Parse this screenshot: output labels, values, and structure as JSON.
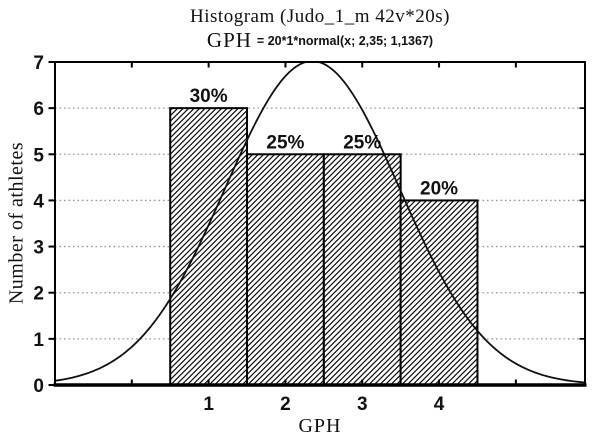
{
  "chart_data": {
    "type": "bar",
    "title": "Histogram (Judo_1_m 42v*20s)",
    "subtitle_variable": "GPH",
    "subtitle_formula": "= 20*1*normal(x; 2,35; 1,1367)",
    "xlabel": "GPH",
    "ylabel": "Number of athletes",
    "categories": [
      1,
      2,
      3,
      4
    ],
    "values": [
      6,
      5,
      5,
      4
    ],
    "bar_percent_labels": [
      "30%",
      "25%",
      "25%",
      "20%"
    ],
    "bar_width": 1,
    "x_tick_labels": [
      "1",
      "2",
      "3",
      "4"
    ],
    "x_tick_positions": [
      1,
      2,
      3,
      4
    ],
    "x_minor_tick_positions": [
      0,
      1,
      2,
      3,
      4,
      5
    ],
    "y_tick_labels": [
      "0",
      "1",
      "2",
      "3",
      "4",
      "5",
      "6",
      "7"
    ],
    "y_tick_positions": [
      0,
      1,
      2,
      3,
      4,
      5,
      6,
      7
    ],
    "xlim": [
      -1.0,
      5.9
    ],
    "ylim": [
      0,
      7
    ],
    "grid": "horizontal-dotted",
    "legend": "none",
    "normal_curve": {
      "formula": "20*1*normal(x; 2,35; 1,1367)",
      "multiplier": 20,
      "interval_width": 1,
      "mean": 2.35,
      "sigma": 1.1367
    },
    "colors": {
      "line": "#111111",
      "frame": "#000000",
      "bar_fill": "#ffffff",
      "bar_hatch": "#111111",
      "grid": "#999999",
      "background": "#ffffff",
      "text": "#111111"
    }
  }
}
